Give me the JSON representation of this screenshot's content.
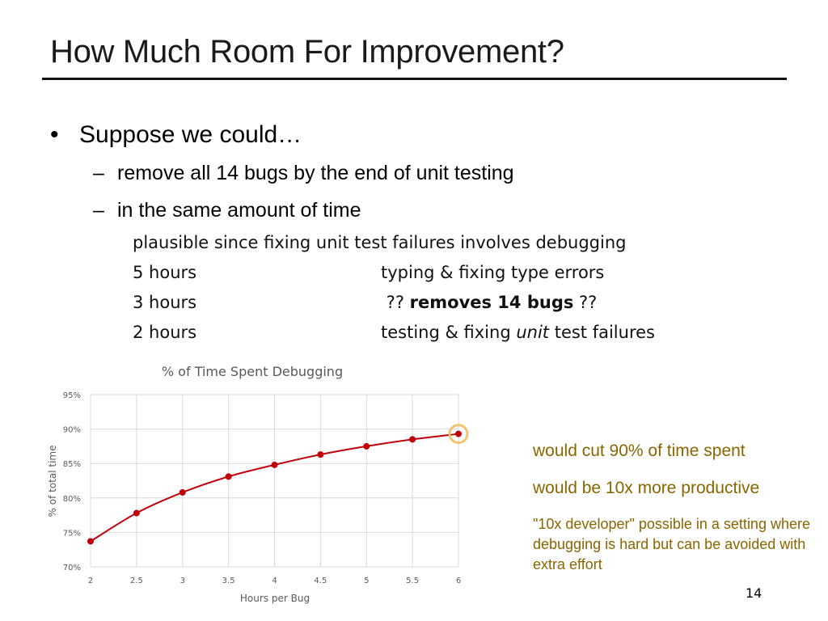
{
  "title": "How Much Room For Improvement?",
  "bullet": {
    "symbol": "•",
    "text": "Suppose we could…",
    "dash_items": [
      "remove all 14 bugs by the end of unit testing",
      "in the same amount of time"
    ],
    "dash_symbol": "–",
    "note": "plausible since fixing unit test failures involves debugging",
    "rows": [
      {
        "hours": "5 hours",
        "desc": "typing & fixing type errors"
      },
      {
        "hours": "3 hours",
        "desc_pre": " ?? ",
        "desc_bold": "removes 14 bugs",
        "desc_post": " ??"
      },
      {
        "hours": "2 hours",
        "desc_pre": "testing & fixing ",
        "desc_italic": "unit",
        "desc_post": " test failures"
      }
    ]
  },
  "callouts": [
    "would cut 90% of time spent",
    "would be 10x more productive",
    "\"10x developer\" possible in a setting where debugging is hard but can be avoided with extra effort"
  ],
  "page_number": "14",
  "colors": {
    "series": "#c0000a",
    "highlight_ring": "#f2c46f",
    "callout_text": "#8a6500",
    "grid": "#d9d9d9"
  },
  "chart_data": {
    "type": "line",
    "title": "% of Time Spent Debugging",
    "xlabel": "Hours per Bug",
    "ylabel": "% of total time",
    "x": [
      2,
      2.5,
      3,
      3.5,
      4,
      4.5,
      5,
      5.5,
      6
    ],
    "x_tick_labels": [
      "2",
      "2.5",
      "3",
      "3.5",
      "4",
      "4.5",
      "5",
      "5.5",
      "6"
    ],
    "y_ticks": [
      70,
      75,
      80,
      85,
      90,
      95
    ],
    "y_tick_labels": [
      "70%",
      "75%",
      "80%",
      "85%",
      "90%",
      "95%"
    ],
    "ylim": [
      70,
      95
    ],
    "xlim": [
      2,
      6
    ],
    "grid": true,
    "series": [
      {
        "values": [
          73.7,
          77.8,
          80.8,
          83.1,
          84.8,
          86.3,
          87.5,
          88.5,
          89.3
        ]
      }
    ],
    "highlight_x": 6
  }
}
